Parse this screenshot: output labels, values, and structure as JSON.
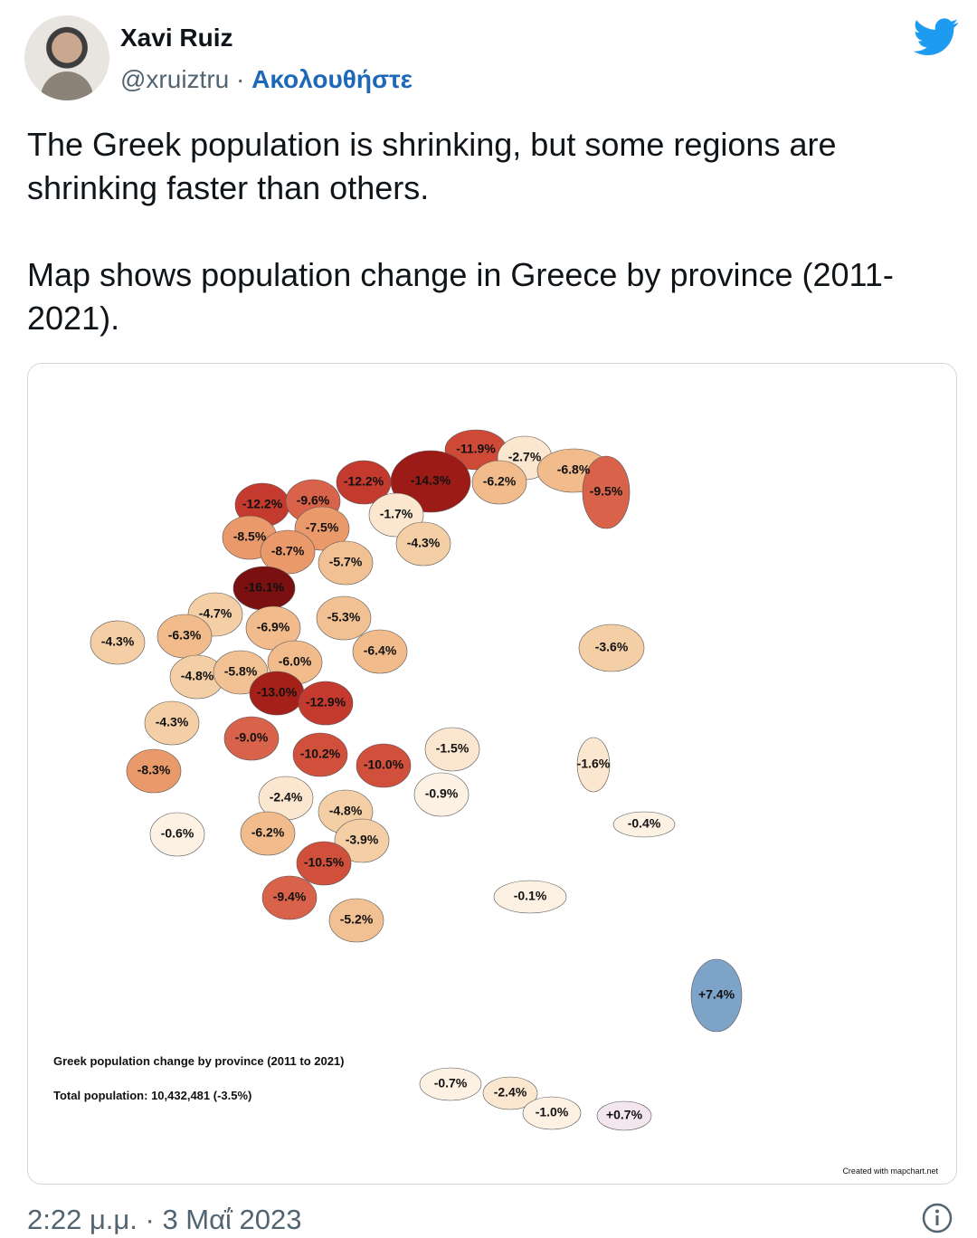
{
  "author": {
    "name": "Xavi Ruiz",
    "handle": "@xruiztru",
    "separator": "·",
    "follow": "Ακολουθήστε"
  },
  "tweet": {
    "paragraphs": [
      "The Greek population is shrinking, but some regions are shrinking faster than others.",
      "Map shows population change in Greece by province (2011-2021)."
    ]
  },
  "map": {
    "title": "Greek population change by province (2011 to 2021)",
    "total": "Total population: 10,432,481 (-3.5%)",
    "credit": "Created with mapchart.net",
    "regions": [
      {
        "label": "-11.9%",
        "color": "#cf4a36"
      },
      {
        "label": "-2.7%",
        "color": "#fbe6cf"
      },
      {
        "label": "-6.8%",
        "color": "#f1bb8c"
      },
      {
        "label": "-9.5%",
        "color": "#d9624b"
      },
      {
        "label": "-12.2%",
        "color": "#c53a2e"
      },
      {
        "label": "-14.3%",
        "color": "#9c1b17"
      },
      {
        "label": "-6.2%",
        "color": "#f1bb8c"
      },
      {
        "label": "-12.2%",
        "color": "#c53a2e"
      },
      {
        "label": "-9.6%",
        "color": "#d9624b"
      },
      {
        "label": "-1.7%",
        "color": "#fbe6cf"
      },
      {
        "label": "-7.5%",
        "color": "#ea9a6a"
      },
      {
        "label": "-8.5%",
        "color": "#ea9a6a"
      },
      {
        "label": "-8.7%",
        "color": "#ea9a6a"
      },
      {
        "label": "-4.3%",
        "color": "#f4cfa6"
      },
      {
        "label": "-5.7%",
        "color": "#f2c193"
      },
      {
        "label": "-16.1%",
        "color": "#7a1010"
      },
      {
        "label": "-3.6%",
        "color": "#f4cfa6"
      },
      {
        "label": "-4.7%",
        "color": "#f4cfa6"
      },
      {
        "label": "-5.3%",
        "color": "#f2c193"
      },
      {
        "label": "-6.9%",
        "color": "#f1bb8c"
      },
      {
        "label": "-4.3%",
        "color": "#f4cfa6"
      },
      {
        "label": "-6.3%",
        "color": "#f1bb8c"
      },
      {
        "label": "-6.4%",
        "color": "#f1bb8c"
      },
      {
        "label": "-6.0%",
        "color": "#f1bb8c"
      },
      {
        "label": "-4.8%",
        "color": "#f4cfa6"
      },
      {
        "label": "-5.8%",
        "color": "#f2c193"
      },
      {
        "label": "-13.0%",
        "color": "#a52019"
      },
      {
        "label": "-12.9%",
        "color": "#c53a2e"
      },
      {
        "label": "-4.3%",
        "color": "#f4cfa6"
      },
      {
        "label": "-9.0%",
        "color": "#d9624b"
      },
      {
        "label": "-1.5%",
        "color": "#fbe6cf"
      },
      {
        "label": "-1.6%",
        "color": "#fbe6cf"
      },
      {
        "label": "-8.3%",
        "color": "#ea9a6a"
      },
      {
        "label": "-10.2%",
        "color": "#d0503c"
      },
      {
        "label": "-10.0%",
        "color": "#d0503c"
      },
      {
        "label": "-0.9%",
        "color": "#fdf1e4"
      },
      {
        "label": "-2.4%",
        "color": "#fbe6cf"
      },
      {
        "label": "-4.8%",
        "color": "#f4cfa6"
      },
      {
        "label": "-0.4%",
        "color": "#fdf1e4"
      },
      {
        "label": "-0.6%",
        "color": "#fdf1e4"
      },
      {
        "label": "-6.2%",
        "color": "#f1bb8c"
      },
      {
        "label": "-3.9%",
        "color": "#f4cfa6"
      },
      {
        "label": "-10.5%",
        "color": "#d0503c"
      },
      {
        "label": "-0.1%",
        "color": "#fdf1e4"
      },
      {
        "label": "-9.4%",
        "color": "#d9624b"
      },
      {
        "label": "-5.2%",
        "color": "#f2c193"
      },
      {
        "label": "+7.4%",
        "color": "#7ea3c8"
      },
      {
        "label": "-0.7%",
        "color": "#fdf1e4"
      },
      {
        "label": "-2.4%",
        "color": "#fbe6cf"
      },
      {
        "label": "-1.0%",
        "color": "#fdf1e4"
      },
      {
        "label": "+0.7%",
        "color": "#f3e6ef"
      }
    ]
  },
  "footer": {
    "time": "2:22 μ.μ. · 3 Μαΐ 2023"
  }
}
